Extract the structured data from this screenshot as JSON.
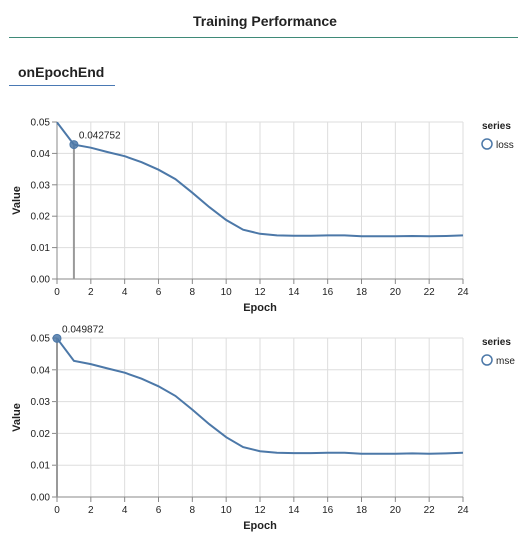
{
  "header": {
    "title": "Training Performance"
  },
  "tab": {
    "label": "onEpochEnd"
  },
  "colors": {
    "line": "#4c78a8",
    "grid": "#dddddd",
    "axis": "#888888",
    "rule": "#3f8a78",
    "highlight": "#999999"
  },
  "chart_data": [
    {
      "type": "line",
      "xlabel": "Epoch",
      "ylabel": "Value",
      "xlim": [
        0,
        24
      ],
      "ylim": [
        0,
        0.05
      ],
      "x_ticks": [
        0,
        2,
        4,
        6,
        8,
        10,
        12,
        14,
        16,
        18,
        20,
        22,
        24
      ],
      "y_ticks": [
        "0.00",
        "0.01",
        "0.02",
        "0.03",
        "0.04",
        "0.05"
      ],
      "grid": true,
      "legend": {
        "title": "series",
        "position": "right"
      },
      "series": [
        {
          "name": "loss",
          "x": [
            0,
            1,
            2,
            3,
            4,
            5,
            6,
            7,
            8,
            9,
            10,
            11,
            12,
            13,
            14,
            15,
            16,
            17,
            18,
            19,
            20,
            21,
            22,
            23,
            24
          ],
          "values": [
            0.0499,
            0.0428,
            0.0418,
            0.0404,
            0.0391,
            0.0372,
            0.0348,
            0.0318,
            0.0275,
            0.0229,
            0.0188,
            0.0157,
            0.0144,
            0.0139,
            0.0138,
            0.0138,
            0.0139,
            0.0139,
            0.0136,
            0.0136,
            0.0136,
            0.0137,
            0.0136,
            0.0137,
            0.0139
          ]
        }
      ],
      "highlight": {
        "x": 1,
        "label": "0.042752"
      }
    },
    {
      "type": "line",
      "xlabel": "Epoch",
      "ylabel": "Value",
      "xlim": [
        0,
        24
      ],
      "ylim": [
        0,
        0.05
      ],
      "x_ticks": [
        0,
        2,
        4,
        6,
        8,
        10,
        12,
        14,
        16,
        18,
        20,
        22,
        24
      ],
      "y_ticks": [
        "0.00",
        "0.01",
        "0.02",
        "0.03",
        "0.04",
        "0.05"
      ],
      "grid": true,
      "legend": {
        "title": "series",
        "position": "right"
      },
      "series": [
        {
          "name": "mse",
          "x": [
            0,
            1,
            2,
            3,
            4,
            5,
            6,
            7,
            8,
            9,
            10,
            11,
            12,
            13,
            14,
            15,
            16,
            17,
            18,
            19,
            20,
            21,
            22,
            23,
            24
          ],
          "values": [
            0.0499,
            0.0428,
            0.0418,
            0.0404,
            0.0391,
            0.0372,
            0.0348,
            0.0318,
            0.0275,
            0.0229,
            0.0188,
            0.0157,
            0.0144,
            0.0139,
            0.0138,
            0.0138,
            0.0139,
            0.0139,
            0.0136,
            0.0136,
            0.0136,
            0.0137,
            0.0136,
            0.0137,
            0.0139
          ]
        }
      ],
      "highlight": {
        "x": 0,
        "label": "0.049872"
      }
    }
  ]
}
